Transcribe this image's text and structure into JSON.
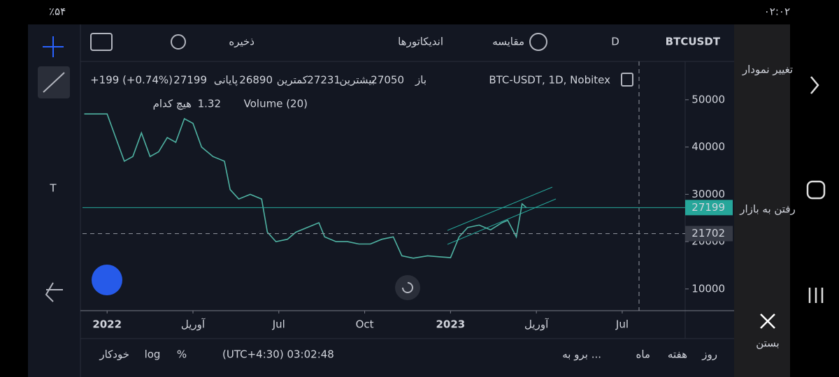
{
  "status_bar": {
    "battery": "٪۵۴",
    "time": "۰۲:۰۲"
  },
  "toolbar": {
    "save": "ذخیره",
    "indicators": "اندیکاتورها",
    "compare": "مقایسه",
    "interval": "D",
    "symbol": "BTCUSDT"
  },
  "legend": {
    "title": "BTC-USDT, 1D, Nobitex",
    "open_label": "باز",
    "open": 27050,
    "high_label": "بیشترین",
    "high": 27231,
    "low_label": "کمترین",
    "low": 26890,
    "close_label": "پایانی",
    "close": 27199,
    "change": "+199 (+0.74%)",
    "volume_title": "Volume (20)",
    "volume_value": 1.32,
    "volume_extra": "هیچ کدام"
  },
  "bottom_bar": {
    "auto": "خودکار",
    "log": "log",
    "percent": "%",
    "clock": "(UTC+4:30) 03:02:48",
    "goto": "برو به ...",
    "month": "ماه",
    "week": "هفته",
    "day": "روز"
  },
  "side_panel": {
    "change_chart": "تغییر نمودار",
    "go_market": "رفتن به بازار",
    "close": "بستن"
  },
  "chart_data": {
    "type": "line",
    "color": "#4fb3a3",
    "x": [
      -0.8,
      0,
      0.3,
      0.6,
      0.9,
      1.2,
      1.5,
      1.8,
      2.1,
      2.4,
      2.7,
      3.0,
      3.3,
      3.7,
      4.1,
      4.3,
      4.6,
      5.0,
      5.4,
      5.6,
      5.9,
      6.3,
      6.6,
      7.0,
      7.4,
      7.6,
      8.0,
      8.4,
      8.8,
      9.2,
      9.6,
      10.0,
      10.3,
      10.7,
      11.2,
      11.6,
      12.0,
      12.3,
      12.6,
      13.0,
      13.4,
      13.8,
      14.0,
      14.3,
      14.5,
      14.65
    ],
    "values": [
      47000,
      47000,
      42000,
      37000,
      38000,
      43000,
      38000,
      39000,
      42000,
      41000,
      46000,
      45000,
      40000,
      38000,
      37000,
      31000,
      29000,
      30000,
      29000,
      22000,
      20000,
      20500,
      22000,
      23000,
      24000,
      21000,
      20000,
      20000,
      19500,
      19500,
      20500,
      21000,
      17000,
      16500,
      17000,
      16800,
      16600,
      21000,
      23000,
      23500,
      22500,
      24000,
      24500,
      21000,
      28000,
      27199
    ],
    "xlim": [
      -0.86,
      20.2
    ],
    "xticks": [
      {
        "value": 0,
        "label": "2022"
      },
      {
        "value": 3,
        "label": "آوریل"
      },
      {
        "value": 6,
        "label": "Jul"
      },
      {
        "value": 9,
        "label": "Oct"
      },
      {
        "value": 12,
        "label": "2023"
      },
      {
        "value": 15,
        "label": "آوریل"
      },
      {
        "value": 18,
        "label": "Jul"
      }
    ],
    "ylim": [
      5400,
      58100
    ],
    "yticks": [
      10000,
      20000,
      30000,
      40000,
      50000
    ],
    "current_price": 27199,
    "marker_price": 21702
  }
}
